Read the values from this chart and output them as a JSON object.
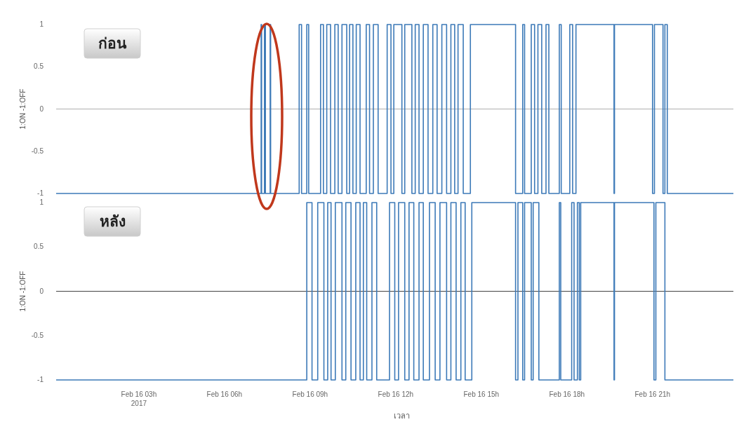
{
  "chart_data": [
    {
      "type": "step",
      "ylabel": "1:ON  -1:OFF",
      "annotations": [
        "ก่อน"
      ],
      "xlim": [
        "2017-02-16T00:06",
        "2017-02-16T23:50"
      ],
      "ylim": [
        -1,
        1
      ],
      "yticks": [
        -1,
        -0.5,
        0,
        0.5,
        1
      ],
      "tick_labels": "y",
      "grid": false,
      "ref_lines": [
        {
          "axis": "y",
          "value": 0,
          "color": "#b0b0b0"
        }
      ],
      "series": [
        {
          "color": "#3d7ab8",
          "x": [
            "2017-02-16T00:06",
            "2017-02-16T07:17",
            "2017-02-16T07:18",
            "2017-02-16T07:24",
            "2017-02-16T07:26",
            "2017-02-16T07:36",
            "2017-02-16T07:37",
            "2017-02-16T08:37",
            "2017-02-16T08:42",
            "2017-02-16T08:53",
            "2017-02-16T08:57",
            "2017-02-16T09:22",
            "2017-02-16T09:28",
            "2017-02-16T09:35",
            "2017-02-16T09:43",
            "2017-02-16T09:52",
            "2017-02-16T09:59",
            "2017-02-16T10:07",
            "2017-02-16T10:17",
            "2017-02-16T10:23",
            "2017-02-16T10:30",
            "2017-02-16T10:37",
            "2017-02-16T10:45",
            "2017-02-16T10:58",
            "2017-02-16T11:05",
            "2017-02-16T11:13",
            "2017-02-16T11:23",
            "2017-02-16T11:42",
            "2017-02-16T11:50",
            "2017-02-16T11:56",
            "2017-02-16T12:13",
            "2017-02-16T12:19",
            "2017-02-16T12:34",
            "2017-02-16T12:41",
            "2017-02-16T12:49",
            "2017-02-16T12:58",
            "2017-02-16T13:08",
            "2017-02-16T13:18",
            "2017-02-16T13:27",
            "2017-02-16T13:37",
            "2017-02-16T13:47",
            "2017-02-16T13:56",
            "2017-02-16T14:04",
            "2017-02-16T14:11",
            "2017-02-16T14:22",
            "2017-02-16T14:37",
            "2017-02-16T16:12",
            "2017-02-16T16:27",
            "2017-02-16T16:31",
            "2017-02-16T16:45",
            "2017-02-16T16:52",
            "2017-02-16T16:59",
            "2017-02-16T17:07",
            "2017-02-16T17:16",
            "2017-02-16T17:22",
            "2017-02-16T17:44",
            "2017-02-16T17:48",
            "2017-02-16T18:06",
            "2017-02-16T18:12",
            "2017-02-16T18:19",
            "2017-02-16T19:39",
            "2017-02-16T19:40",
            "2017-02-16T21:00",
            "2017-02-16T21:04",
            "2017-02-16T21:22",
            "2017-02-16T21:26",
            "2017-02-16T21:31",
            "2017-02-16T23:50"
          ],
          "values": [
            -1,
            1,
            -1,
            1,
            -1,
            1,
            -1,
            1,
            -1,
            1,
            -1,
            1,
            -1,
            1,
            -1,
            1,
            -1,
            1,
            -1,
            1,
            -1,
            1,
            -1,
            1,
            -1,
            1,
            -1,
            1,
            -1,
            1,
            -1,
            1,
            -1,
            1,
            -1,
            1,
            -1,
            1,
            -1,
            1,
            -1,
            1,
            -1,
            1,
            -1,
            1,
            -1,
            1,
            -1,
            1,
            -1,
            1,
            -1,
            1,
            -1,
            1,
            -1,
            1,
            -1,
            1,
            -1,
            1,
            -1,
            1,
            -1,
            1,
            -1,
            -1
          ]
        }
      ]
    },
    {
      "type": "step",
      "ylabel": "1:ON  -1:OFF",
      "xlabel": "เวลา",
      "annotations": [
        "หลัง"
      ],
      "xlim": [
        "2017-02-16T00:06",
        "2017-02-16T23:50"
      ],
      "ylim": [
        -1,
        1
      ],
      "yticks": [
        -1,
        -0.5,
        0,
        0.5,
        1
      ],
      "xticks": [
        {
          "value": "2017-02-16T03:00",
          "label": "Feb 16 03h\n2017"
        },
        {
          "value": "2017-02-16T06:00",
          "label": "Feb 16 06h"
        },
        {
          "value": "2017-02-16T09:00",
          "label": "Feb 16 09h"
        },
        {
          "value": "2017-02-16T12:00",
          "label": "Feb 16 12h"
        },
        {
          "value": "2017-02-16T15:00",
          "label": "Feb 16 15h"
        },
        {
          "value": "2017-02-16T18:00",
          "label": "Feb 16 18h"
        },
        {
          "value": "2017-02-16T21:00",
          "label": "Feb 16 21h"
        }
      ],
      "grid": false,
      "ref_lines": [
        {
          "axis": "y",
          "value": 0,
          "color": "#444444"
        }
      ],
      "series": [
        {
          "color": "#3d7ab8",
          "x": [
            "2017-02-16T00:06",
            "2017-02-16T08:53",
            "2017-02-16T09:04",
            "2017-02-16T09:16",
            "2017-02-16T09:29",
            "2017-02-16T09:37",
            "2017-02-16T09:44",
            "2017-02-16T09:53",
            "2017-02-16T10:07",
            "2017-02-16T10:15",
            "2017-02-16T10:26",
            "2017-02-16T10:36",
            "2017-02-16T10:45",
            "2017-02-16T10:52",
            "2017-02-16T10:59",
            "2017-02-16T11:10",
            "2017-02-16T11:20",
            "2017-02-16T11:47",
            "2017-02-16T11:58",
            "2017-02-16T12:06",
            "2017-02-16T12:19",
            "2017-02-16T12:28",
            "2017-02-16T12:38",
            "2017-02-16T12:49",
            "2017-02-16T12:58",
            "2017-02-16T13:11",
            "2017-02-16T13:23",
            "2017-02-16T13:33",
            "2017-02-16T13:47",
            "2017-02-16T13:56",
            "2017-02-16T14:07",
            "2017-02-16T14:17",
            "2017-02-16T14:26",
            "2017-02-16T14:40",
            "2017-02-16T16:12",
            "2017-02-16T16:17",
            "2017-02-16T16:27",
            "2017-02-16T16:31",
            "2017-02-16T16:45",
            "2017-02-16T16:49",
            "2017-02-16T17:01",
            "2017-02-16T17:44",
            "2017-02-16T17:47",
            "2017-02-16T18:10",
            "2017-02-16T18:15",
            "2017-02-16T18:22",
            "2017-02-16T18:26",
            "2017-02-16T18:29",
            "2017-02-16T19:39",
            "2017-02-16T19:40",
            "2017-02-16T21:03",
            "2017-02-16T21:07",
            "2017-02-16T21:26",
            "2017-02-16T23:50"
          ],
          "values": [
            -1,
            1,
            -1,
            1,
            -1,
            1,
            -1,
            1,
            -1,
            1,
            -1,
            1,
            -1,
            1,
            -1,
            1,
            -1,
            1,
            -1,
            1,
            -1,
            1,
            -1,
            1,
            -1,
            1,
            -1,
            1,
            -1,
            1,
            -1,
            1,
            -1,
            1,
            -1,
            1,
            -1,
            1,
            -1,
            1,
            -1,
            1,
            -1,
            1,
            -1,
            1,
            -1,
            1,
            -1,
            1,
            -1,
            1,
            -1,
            -1
          ]
        }
      ]
    }
  ]
}
